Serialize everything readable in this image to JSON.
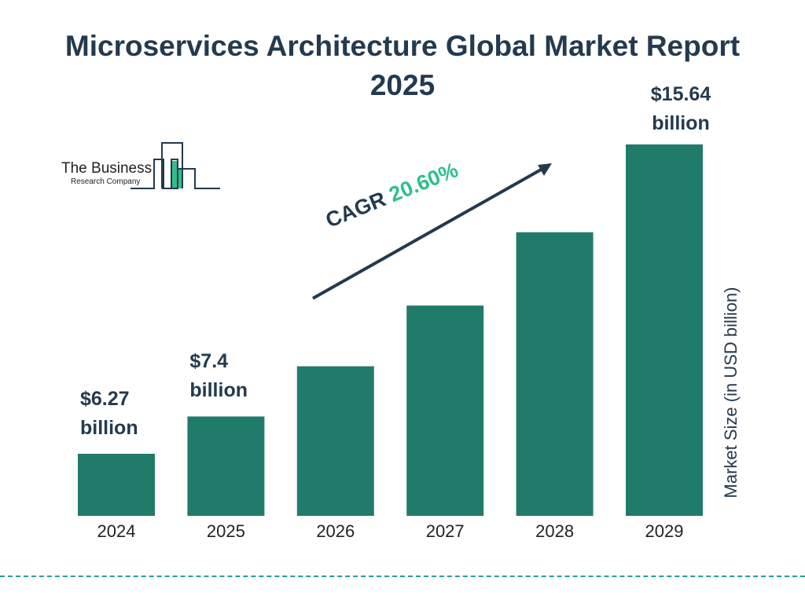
{
  "title": "Microservices Architecture Global Market Report 2025",
  "logo": {
    "line1": "The Business",
    "line2": "Research Company"
  },
  "colors": {
    "bar": "#217b6b",
    "title": "#233a4f",
    "cagr": "#2ebf8a",
    "divider": "#2a9d8f"
  },
  "chart_data": {
    "type": "bar",
    "title": "Microservices Architecture Global Market Report 2025",
    "categories": [
      "2024",
      "2025",
      "2026",
      "2027",
      "2028",
      "2029"
    ],
    "values": [
      6.27,
      7.4,
      8.92,
      10.76,
      12.98,
      15.64
    ],
    "data_labels": [
      {
        "value": "$6.27",
        "unit": "billion"
      },
      {
        "value": "$7.4",
        "unit": "billion"
      },
      null,
      null,
      null,
      {
        "value": "$15.64",
        "unit": "billion"
      }
    ],
    "ylabel": "Market Size (in USD billion)",
    "xlabel": "",
    "annotation": {
      "label": "CAGR",
      "value": "20.60%"
    },
    "grid": false
  }
}
